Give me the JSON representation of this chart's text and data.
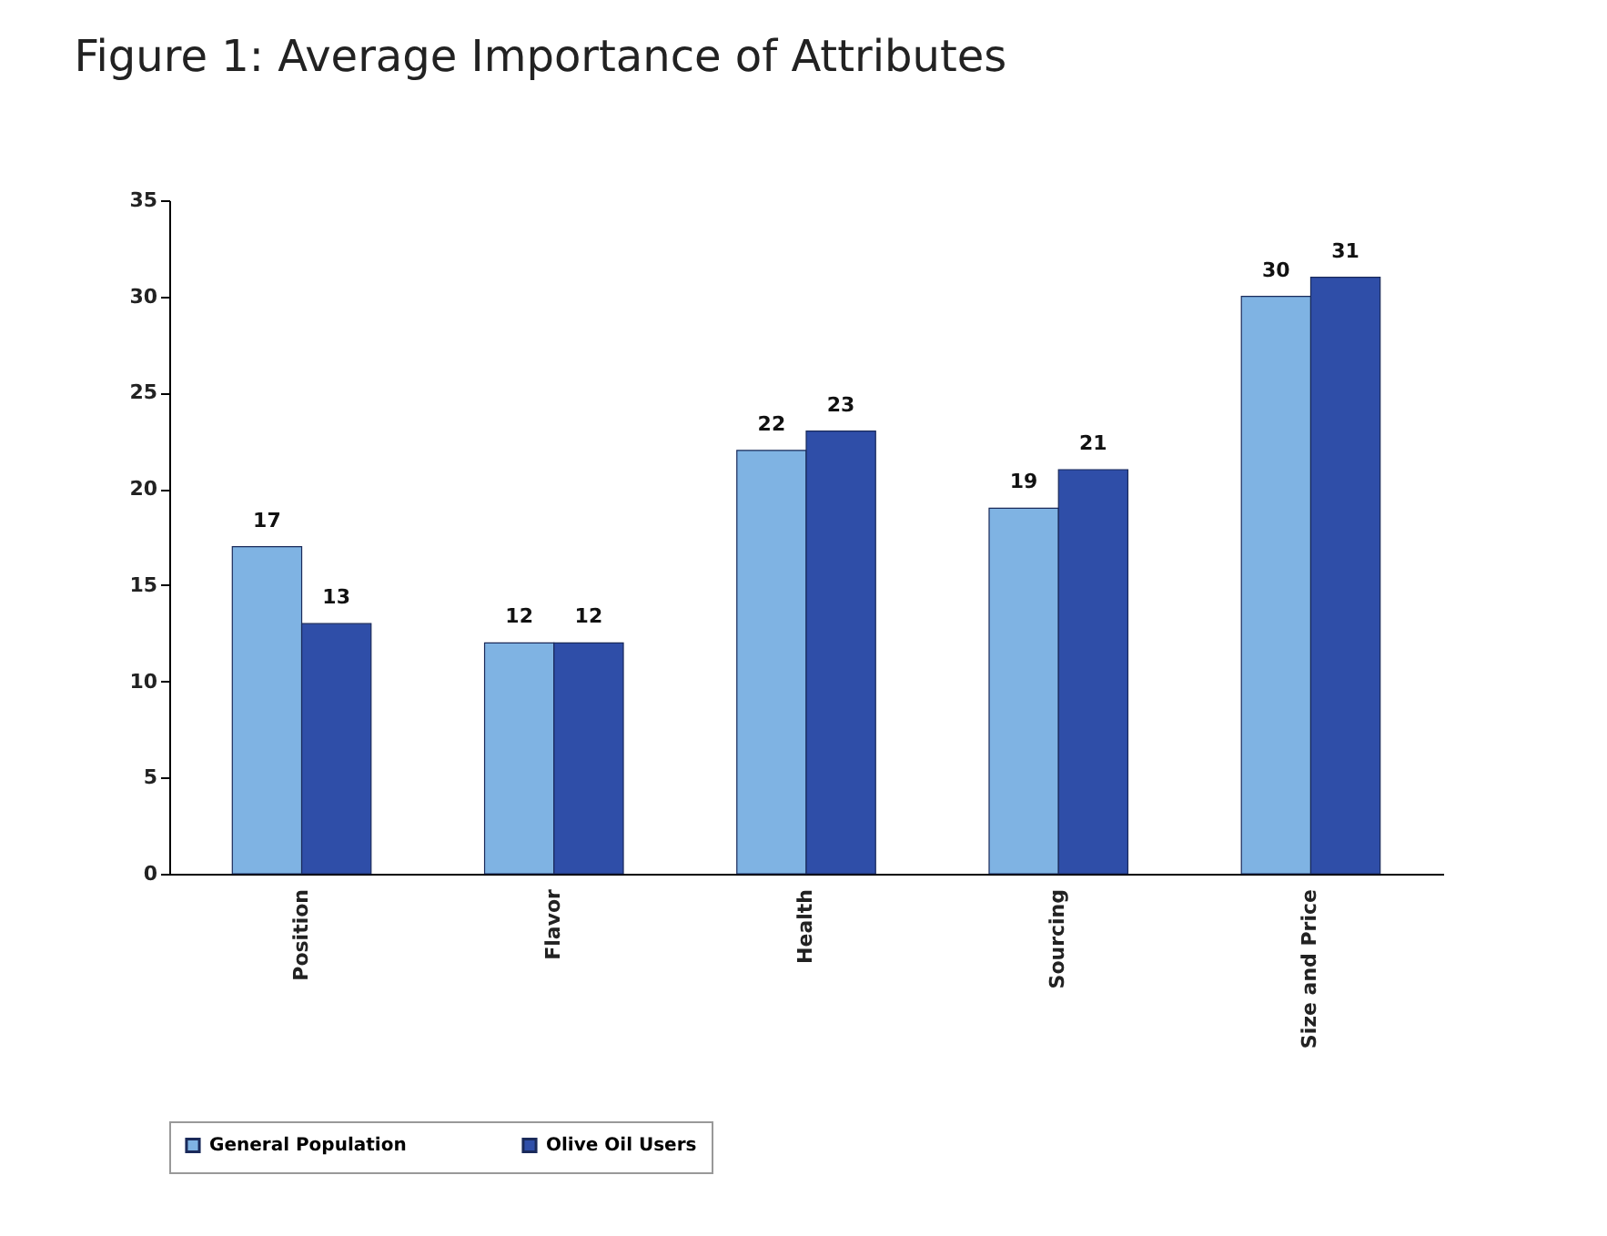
{
  "chart_data": {
    "type": "bar",
    "title": "Figure 1: Average Importance of Attributes",
    "categories": [
      "Position",
      "Flavor",
      "Health",
      "Sourcing",
      "Size and Price"
    ],
    "series": [
      {
        "name": "General Population",
        "color": "#7fb3e3",
        "values": [
          17,
          12,
          22,
          19,
          30
        ]
      },
      {
        "name": "Olive Oil Users",
        "color": "#2f4ea8",
        "values": [
          13,
          12,
          23,
          21,
          31
        ]
      }
    ],
    "ylim": [
      0,
      35
    ],
    "yticks": [
      0,
      5,
      10,
      15,
      20,
      25,
      30,
      35
    ],
    "grid": false,
    "legend": "bottom",
    "data_labels": true
  }
}
